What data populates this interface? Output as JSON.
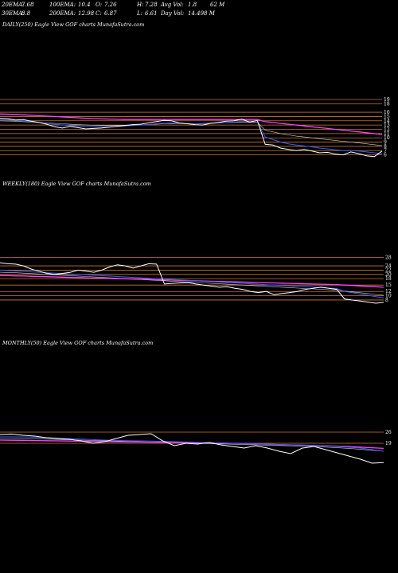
{
  "header": {
    "row1": [
      {
        "label": "20EMA:",
        "value": "7.68"
      },
      {
        "label": "100EMA:",
        "value": "10.4"
      },
      {
        "label": "O:",
        "value": "7.26"
      },
      {
        "label": "H:",
        "value": "7.28"
      },
      {
        "label": "Avg Vol:",
        "value": "1.8"
      },
      {
        "label": "",
        "value": "62  M"
      }
    ],
    "row2": [
      {
        "label": "30EMA:",
        "value": "8.8"
      },
      {
        "label": "200EMA:",
        "value": "12.98"
      },
      {
        "label": "C:",
        "value": "6.87"
      },
      {
        "label": "L:",
        "value": "6.61"
      },
      {
        "label": "Day Vol:",
        "value": "14.498  M"
      }
    ]
  },
  "colors": {
    "background": "#000000",
    "price": "#ffffff",
    "ma_short": "#3a5bff",
    "ma_long": "#ff40ff",
    "levels": "#c87830",
    "ma_mid": "#d0d0d0"
  },
  "chart_data": [
    {
      "type": "line",
      "title": "DAILY(250) Eagle  View  GOF charts MunafaSutra.com",
      "ylim": [
        5,
        19
      ],
      "yticks": [
        "19",
        "18",
        "16",
        "15",
        "14",
        "13",
        "12",
        "11",
        "10",
        "9",
        "8",
        "7",
        "6"
      ],
      "levels": [
        19,
        18,
        16,
        15,
        14,
        13,
        12,
        11,
        10,
        9,
        8,
        7,
        6
      ],
      "series": [
        {
          "role": "price",
          "values": [
            14.6,
            14.5,
            14.2,
            14.3,
            13.9,
            13.6,
            13.2,
            12.6,
            12.3,
            12.7,
            12.4,
            12.1,
            12.2,
            12.3,
            12.5,
            12.7,
            12.9,
            13.1,
            13.2,
            13.5,
            13.8,
            14.1,
            14.0,
            13.5,
            13.3,
            13.1,
            13.0,
            13.4,
            13.6,
            13.9,
            14.0,
            14.4,
            13.7,
            14.1,
            8.5,
            8.3,
            7.6,
            7.3,
            7.0,
            7.3,
            6.9,
            6.5,
            6.6,
            6.2,
            6.0,
            6.7,
            6.3,
            5.8,
            5.6,
            6.9
          ]
        },
        {
          "role": "ma_short",
          "values": [
            14.3,
            14.25,
            14.1,
            14.0,
            13.8,
            13.6,
            13.4,
            13.2,
            13.0,
            12.9,
            12.8,
            12.7,
            12.6,
            12.6,
            12.6,
            12.7,
            12.8,
            12.9,
            13.0,
            13.1,
            13.3,
            13.4,
            13.5,
            13.4,
            13.3,
            13.3,
            13.3,
            13.4,
            13.5,
            13.6,
            13.7,
            13.8,
            13.8,
            13.7,
            10.2,
            9.6,
            9.0,
            8.6,
            8.3,
            8.1,
            7.9,
            7.6,
            7.4,
            7.2,
            7.0,
            7.0,
            6.9,
            6.7,
            6.5,
            6.3
          ]
        },
        {
          "role": "ma_mid",
          "values": [
            14.0,
            13.95,
            13.9,
            13.8,
            13.7,
            13.6,
            13.5,
            13.4,
            13.3,
            13.2,
            13.1,
            13.0,
            12.95,
            12.9,
            12.9,
            12.9,
            12.95,
            13.0,
            13.05,
            13.1,
            13.2,
            13.3,
            13.35,
            13.35,
            13.35,
            13.35,
            13.4,
            13.45,
            13.5,
            13.55,
            13.6,
            13.65,
            13.65,
            13.6,
            11.8,
            11.4,
            11.0,
            10.7,
            10.4,
            10.2,
            10.0,
            9.8,
            9.6,
            9.4,
            9.2,
            9.0,
            8.8,
            8.6,
            8.4,
            8.2
          ]
        },
        {
          "role": "ma_long",
          "values": [
            15.6,
            15.55,
            15.5,
            15.4,
            15.3,
            15.2,
            15.1,
            15.0,
            14.9,
            14.8,
            14.7,
            14.6,
            14.5,
            14.45,
            14.4,
            14.35,
            14.3,
            14.3,
            14.3,
            14.3,
            14.3,
            14.3,
            14.3,
            14.3,
            14.3,
            14.3,
            14.3,
            14.3,
            14.3,
            14.3,
            14.3,
            14.3,
            14.3,
            14.3,
            13.8,
            13.6,
            13.4,
            13.2,
            13.0,
            12.8,
            12.6,
            12.4,
            12.2,
            12.0,
            11.8,
            11.6,
            11.4,
            11.2,
            11.0,
            10.8
          ]
        }
      ]
    },
    {
      "type": "line",
      "title": "WEEKLY(180) Eagle  View  GOF charts MunafaSutra.com",
      "ylim": [
        5,
        30
      ],
      "yticks": [
        "28",
        "24",
        "22",
        "20",
        "18",
        "15",
        "12",
        "10",
        "8"
      ],
      "levels": [
        28,
        24,
        22,
        20,
        18,
        15,
        12,
        10,
        8
      ],
      "series": [
        {
          "role": "price",
          "values": [
            25.5,
            25.0,
            24.8,
            24.0,
            22.5,
            21.5,
            20.5,
            20.0,
            20.5,
            21.0,
            22.0,
            21.5,
            21.0,
            22.0,
            23.5,
            24.5,
            24.0,
            23.0,
            24.0,
            25.0,
            24.8,
            15.5,
            15.8,
            16.0,
            16.2,
            15.5,
            15.0,
            14.5,
            14.0,
            14.2,
            13.5,
            13.0,
            12.0,
            11.5,
            12.0,
            10.5,
            11.0,
            11.5,
            12.0,
            13.0,
            13.5,
            14.0,
            13.5,
            13.0,
            8.5,
            8.0,
            7.5,
            7.0,
            6.5,
            6.9
          ]
        },
        {
          "role": "ma_short",
          "values": [
            22.0,
            21.8,
            21.6,
            21.4,
            21.2,
            21.0,
            20.8,
            20.6,
            20.4,
            20.2,
            20.0,
            19.8,
            19.6,
            19.4,
            19.2,
            19.0,
            18.8,
            18.6,
            18.4,
            18.2,
            18.0,
            17.8,
            17.6,
            17.4,
            17.2,
            17.0,
            16.8,
            16.6,
            16.4,
            16.2,
            16.0,
            15.8,
            15.6,
            15.4,
            15.2,
            15.0,
            14.8,
            14.6,
            14.4,
            14.2,
            14.0,
            13.8,
            13.6,
            13.4,
            12.0,
            11.4,
            10.8,
            10.2,
            9.6,
            9.0
          ]
        },
        {
          "role": "ma_mid",
          "values": [
            21.0,
            20.9,
            20.8,
            20.6,
            20.4,
            20.2,
            20.0,
            19.8,
            19.6,
            19.4,
            19.2,
            19.0,
            18.8,
            18.6,
            18.4,
            18.2,
            18.0,
            17.8,
            17.6,
            17.4,
            17.2,
            17.0,
            16.8,
            16.6,
            16.4,
            16.2,
            16.0,
            15.8,
            15.6,
            15.4,
            15.2,
            15.0,
            14.8,
            14.6,
            14.4,
            14.2,
            14.0,
            13.8,
            13.6,
            13.4,
            13.2,
            13.0,
            12.8,
            12.6,
            12.2,
            11.8,
            11.4,
            11.0,
            10.6,
            10.2
          ]
        },
        {
          "role": "ma_long",
          "values": [
            19.5,
            19.4,
            19.3,
            19.2,
            19.1,
            19.0,
            18.9,
            18.8,
            18.7,
            18.6,
            18.5,
            18.4,
            18.3,
            18.2,
            18.1,
            18.0,
            17.9,
            17.8,
            17.7,
            17.6,
            17.5,
            17.4,
            17.3,
            17.2,
            17.1,
            17.0,
            16.9,
            16.8,
            16.7,
            16.6,
            16.5,
            16.4,
            16.3,
            16.2,
            16.1,
            16.0,
            15.9,
            15.8,
            15.7,
            15.6,
            15.5,
            15.4,
            15.3,
            15.2,
            15.0,
            14.8,
            14.6,
            14.4,
            14.2,
            14.0
          ]
        }
      ]
    },
    {
      "type": "line",
      "title": "MONTHLY(50) Eagle  View  GOF charts MunafaSutra.com",
      "ylim": [
        0,
        40
      ],
      "yticks": [
        "26",
        "19"
      ],
      "levels": [
        26,
        19
      ],
      "series": [
        {
          "role": "price",
          "values": [
            24.5,
            24.8,
            24.0,
            23.5,
            22.5,
            22.0,
            21.5,
            20.5,
            19.0,
            20.0,
            22.0,
            24.0,
            24.5,
            25.0,
            20.5,
            17.5,
            19.0,
            18.5,
            19.5,
            18.0,
            17.0,
            16.0,
            17.5,
            16.0,
            14.0,
            12.5,
            16.0,
            17.0,
            15.0,
            13.0,
            11.0,
            9.0,
            6.5,
            6.9
          ]
        },
        {
          "role": "ma_short",
          "values": [
            23.0,
            23.0,
            23.0,
            22.8,
            22.5,
            22.2,
            21.9,
            21.6,
            21.3,
            21.0,
            20.8,
            20.6,
            20.5,
            20.4,
            20.2,
            20.0,
            19.8,
            19.6,
            19.4,
            19.2,
            19.0,
            18.8,
            18.6,
            18.4,
            18.2,
            18.0,
            17.8,
            17.6,
            17.4,
            17.0,
            16.5,
            16.0,
            15.0,
            14.0
          ]
        },
        {
          "role": "ma_mid",
          "values": [
            22.0,
            22.0,
            21.9,
            21.8,
            21.6,
            21.4,
            21.2,
            21.0,
            20.8,
            20.6,
            20.4,
            20.2,
            20.0,
            19.8,
            19.6,
            19.4,
            19.2,
            19.0,
            18.8,
            18.6,
            18.4,
            18.2,
            18.0,
            17.8,
            17.6,
            17.4,
            17.2,
            17.0,
            16.6,
            16.2,
            15.8,
            15.2,
            14.6,
            14.0
          ]
        },
        {
          "role": "ma_long",
          "values": [
            21.0,
            20.9,
            20.8,
            20.7,
            20.6,
            20.5,
            20.4,
            20.3,
            20.2,
            20.1,
            20.0,
            19.9,
            19.8,
            19.7,
            19.6,
            19.5,
            19.4,
            19.3,
            19.2,
            19.1,
            19.0,
            18.8,
            18.6,
            18.4,
            18.2,
            18.0,
            17.8,
            17.6,
            17.4,
            17.2,
            17.0,
            16.6,
            16.2,
            15.8
          ]
        }
      ]
    }
  ]
}
